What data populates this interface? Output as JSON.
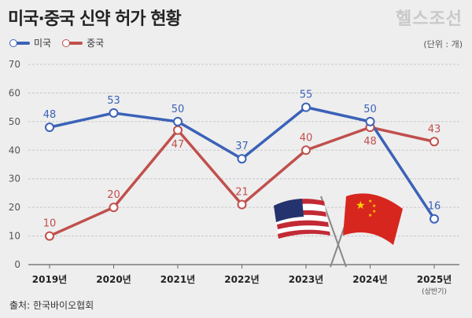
{
  "header": {
    "title": "미국·중국 신약 허가 현황",
    "brand": "헬스조선",
    "unit": "(단위 : 개)"
  },
  "footer": {
    "source": "출처: 한국바이오협회"
  },
  "colors": {
    "us": "#3b62b8",
    "cn": "#c0504d"
  },
  "chart_data": {
    "type": "line",
    "categories": [
      "2019년",
      "2020년",
      "2021년",
      "2022년",
      "2023년",
      "2024년",
      "2025년"
    ],
    "category_sublabels": [
      "",
      "",
      "",
      "",
      "",
      "",
      "(상반기)"
    ],
    "series": [
      {
        "name": "미국",
        "values": [
          48,
          53,
          50,
          37,
          55,
          50,
          16
        ]
      },
      {
        "name": "중국",
        "values": [
          10,
          20,
          47,
          21,
          40,
          48,
          43
        ]
      }
    ],
    "ylim": [
      0,
      70
    ],
    "yticks": [
      0,
      10,
      20,
      30,
      40,
      50,
      60,
      70
    ],
    "grid": true,
    "legend": "top-left"
  }
}
